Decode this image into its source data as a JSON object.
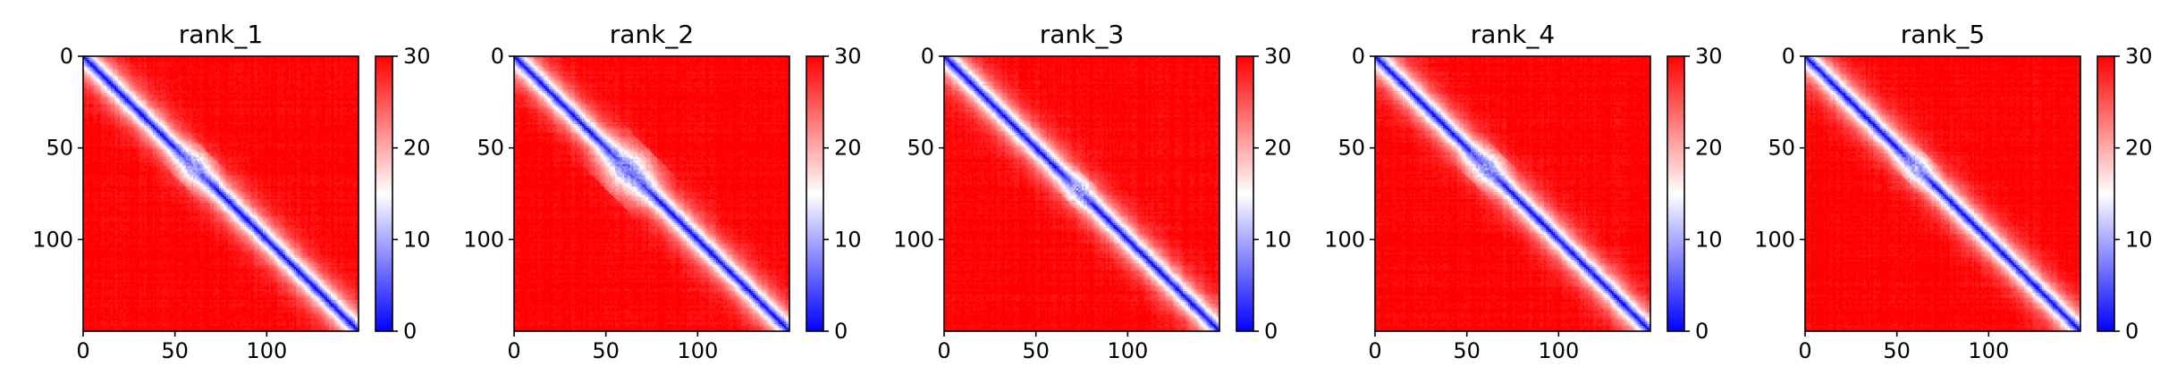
{
  "figure": {
    "panels": [
      {
        "title": "rank_1"
      },
      {
        "title": "rank_2"
      },
      {
        "title": "rank_3"
      },
      {
        "title": "rank_4"
      },
      {
        "title": "rank_5"
      }
    ],
    "colors": {
      "low": "#0000ff",
      "mid": "#ffffff",
      "high": "#ff0000",
      "axes": "#000000",
      "background": "#ffffff"
    }
  },
  "chart_data": [
    {
      "type": "heatmap",
      "title": "rank_1",
      "colormap": "bwr",
      "matrix_size": 150,
      "xlim": [
        0,
        150
      ],
      "ylim": [
        150,
        0
      ],
      "xticks": [
        0,
        50,
        100
      ],
      "yticks": [
        0,
        50,
        100
      ],
      "colorbar": {
        "vmin": 0,
        "vmax": 30,
        "ticks": [
          0,
          10,
          20,
          30
        ]
      },
      "diagonal_value": 0,
      "near_diagonal_blob": {
        "center": 60,
        "radius": 12,
        "value": 9
      },
      "off_diagonal_value": 30
    },
    {
      "type": "heatmap",
      "title": "rank_2",
      "colormap": "bwr",
      "matrix_size": 150,
      "xlim": [
        0,
        150
      ],
      "ylim": [
        150,
        0
      ],
      "xticks": [
        0,
        50,
        100
      ],
      "yticks": [
        0,
        50,
        100
      ],
      "colorbar": {
        "vmin": 0,
        "vmax": 30,
        "ticks": [
          0,
          10,
          20,
          30
        ]
      },
      "diagonal_value": 0,
      "near_diagonal_blob": {
        "center": 62,
        "radius": 17,
        "value": 8
      },
      "off_diagonal_value": 30
    },
    {
      "type": "heatmap",
      "title": "rank_3",
      "colormap": "bwr",
      "matrix_size": 150,
      "xlim": [
        0,
        150
      ],
      "ylim": [
        150,
        0
      ],
      "xticks": [
        0,
        50,
        100
      ],
      "yticks": [
        0,
        50,
        100
      ],
      "colorbar": {
        "vmin": 0,
        "vmax": 30,
        "ticks": [
          0,
          10,
          20,
          30
        ]
      },
      "diagonal_value": 0,
      "near_diagonal_blob": {
        "center": 72,
        "radius": 9,
        "value": 10
      },
      "off_diagonal_value": 30
    },
    {
      "type": "heatmap",
      "title": "rank_4",
      "colormap": "bwr",
      "matrix_size": 150,
      "xlim": [
        0,
        150
      ],
      "ylim": [
        150,
        0
      ],
      "xticks": [
        0,
        50,
        100
      ],
      "yticks": [
        0,
        50,
        100
      ],
      "colorbar": {
        "vmin": 0,
        "vmax": 30,
        "ticks": [
          0,
          10,
          20,
          30
        ]
      },
      "diagonal_value": 0,
      "near_diagonal_blob": {
        "center": 60,
        "radius": 12,
        "value": 9
      },
      "off_diagonal_value": 30
    },
    {
      "type": "heatmap",
      "title": "rank_5",
      "colormap": "bwr",
      "matrix_size": 150,
      "xlim": [
        0,
        150
      ],
      "ylim": [
        150,
        0
      ],
      "xticks": [
        0,
        50,
        100
      ],
      "yticks": [
        0,
        50,
        100
      ],
      "colorbar": {
        "vmin": 0,
        "vmax": 30,
        "ticks": [
          0,
          10,
          20,
          30
        ]
      },
      "diagonal_value": 0,
      "near_diagonal_blob": {
        "center": 60,
        "radius": 10,
        "value": 10
      },
      "off_diagonal_value": 30
    }
  ]
}
